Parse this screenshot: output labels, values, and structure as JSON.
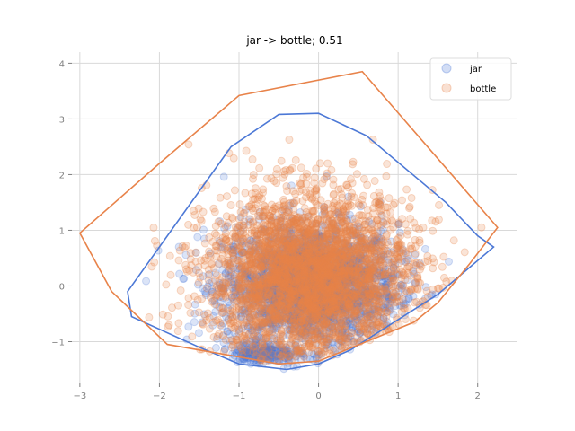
{
  "chart_data": {
    "type": "scatter",
    "title": "jar -> bottle; 0.51",
    "xlabel": "",
    "ylabel": "",
    "xlim": [
      -3.1,
      2.5
    ],
    "ylim": [
      -1.75,
      4.2
    ],
    "x_ticks": [
      -3,
      -2,
      -1,
      0,
      1,
      2
    ],
    "y_ticks": [
      -1,
      0,
      1,
      2,
      3,
      4
    ],
    "grid": true,
    "legend_position": "top-right",
    "series": [
      {
        "name": "jar",
        "color": "#4c78d6",
        "point_count": 2400,
        "center": [
          -0.1,
          0.0
        ],
        "spread": [
          0.55,
          0.55
        ],
        "dense_cluster": {
          "center": [
            -0.7,
            -1.2
          ],
          "spread": [
            0.2,
            0.1
          ],
          "count": 200
        },
        "hull": [
          [
            -2.35,
            -0.55
          ],
          [
            -2.4,
            -0.1
          ],
          [
            -1.1,
            2.5
          ],
          [
            -0.5,
            3.08
          ],
          [
            0.0,
            3.1
          ],
          [
            0.6,
            2.7
          ],
          [
            1.6,
            1.5
          ],
          [
            2.0,
            0.9
          ],
          [
            2.2,
            0.7
          ],
          [
            1.5,
            -0.15
          ],
          [
            0.4,
            -1.15
          ],
          [
            0.0,
            -1.4
          ],
          [
            -0.4,
            -1.5
          ],
          [
            -1.0,
            -1.4
          ],
          [
            -1.5,
            -1.1
          ]
        ]
      },
      {
        "name": "bottle",
        "color": "#e8834a",
        "point_count": 3200,
        "center": [
          -0.1,
          0.15
        ],
        "spread": [
          0.65,
          0.75
        ],
        "hull": [
          [
            -3.0,
            0.95
          ],
          [
            -2.0,
            2.2
          ],
          [
            -1.0,
            3.42
          ],
          [
            0.55,
            3.85
          ],
          [
            2.25,
            1.05
          ],
          [
            1.9,
            0.4
          ],
          [
            1.5,
            -0.3
          ],
          [
            1.2,
            -0.65
          ],
          [
            0.0,
            -1.35
          ],
          [
            -0.5,
            -1.4
          ],
          [
            -1.9,
            -1.05
          ],
          [
            -2.6,
            -0.1
          ]
        ]
      }
    ]
  }
}
